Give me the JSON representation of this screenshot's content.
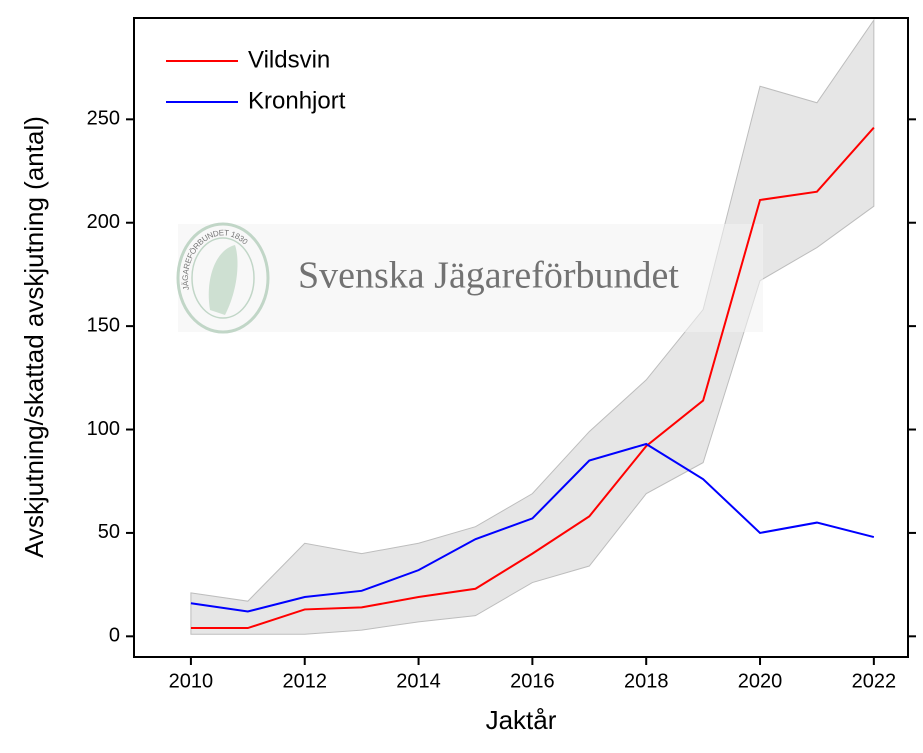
{
  "chart_data": {
    "type": "line",
    "x_label": "Jaktår",
    "y_label": "Avskjutning/skattad avskjutning (antal)",
    "watermark": "Svenska Jägareförbundet",
    "watermark_logo_text": "JÄGAREFÖRBUNDET 1830",
    "x": [
      2010,
      2011,
      2012,
      2013,
      2014,
      2015,
      2016,
      2017,
      2018,
      2019,
      2020,
      2021,
      2022
    ],
    "series": [
      {
        "name": "Vildsvin",
        "color": "#ff0000",
        "values": [
          4,
          4,
          13,
          14,
          19,
          23,
          40,
          58,
          92,
          114,
          211,
          215,
          246
        ]
      },
      {
        "name": "Kronhjort",
        "color": "#0000ff",
        "values": [
          16,
          12,
          19,
          22,
          32,
          47,
          57,
          85,
          93,
          76,
          50,
          55,
          48
        ]
      }
    ],
    "band": {
      "color": "#e6e6e6",
      "upper": [
        21,
        17,
        45,
        40,
        45,
        53,
        69,
        99,
        124,
        158,
        266,
        258,
        298
      ],
      "lower": [
        1,
        1,
        1,
        3,
        7,
        10,
        26,
        34,
        69,
        84,
        172,
        188,
        208
      ]
    },
    "xlim": [
      2009,
      2022.6
    ],
    "ylim": [
      -10,
      299
    ],
    "xticks": [
      2010,
      2012,
      2014,
      2016,
      2018,
      2020,
      2022
    ],
    "yticks": [
      0,
      50,
      100,
      150,
      200,
      250
    ],
    "legend": "top-left",
    "grid": false
  }
}
